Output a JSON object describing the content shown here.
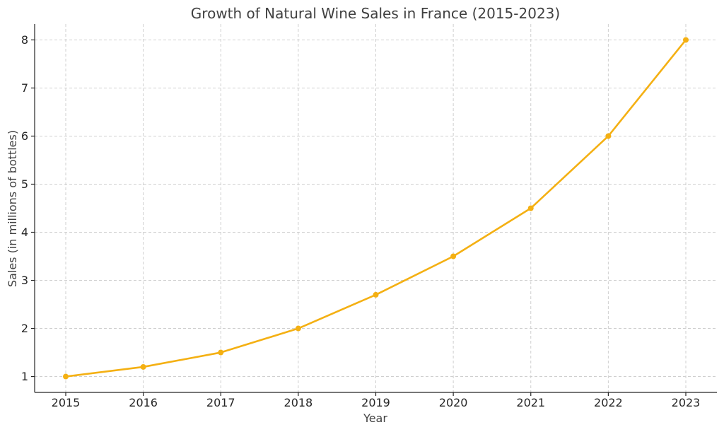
{
  "chart_data": {
    "type": "line",
    "title": "Growth of Natural Wine Sales in France (2015-2023)",
    "xlabel": "Year",
    "ylabel": "Sales (in millions of bottles)",
    "x": [
      "2015",
      "2016",
      "2017",
      "2018",
      "2019",
      "2020",
      "2021",
      "2022",
      "2023"
    ],
    "series": [
      {
        "values": [
          1.0,
          1.2,
          1.5,
          2.0,
          2.7,
          3.5,
          4.5,
          6.0,
          8.0
        ],
        "color": "#f4b013"
      }
    ],
    "yticks": [
      "1",
      "2",
      "3",
      "4",
      "5",
      "6",
      "7",
      "8"
    ],
    "ylim": [
      0.67,
      8.33
    ],
    "grid": true,
    "marker": "circle"
  }
}
